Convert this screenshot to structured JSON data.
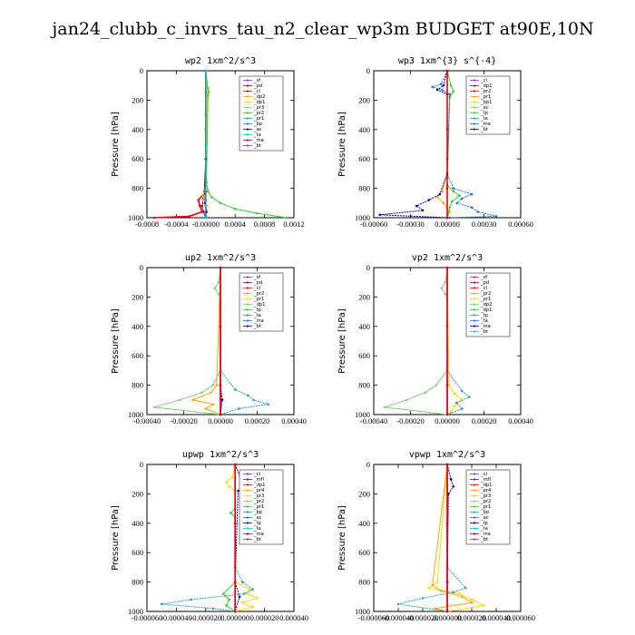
{
  "figure_title": "jan24_clubb_c_invrs_tau_n2_clear_wp3m  BUDGET at90E,10N",
  "colors": {
    "purple": "#8a2be2",
    "red": "#e8000b",
    "orange": "#ffa500",
    "yellow": "#ffd700",
    "green": "#32cd32",
    "blue": "#1e6ee8",
    "navy": "#00008b",
    "teal": "#2a9db5",
    "cyan": "#00ced1",
    "darkred": "#a00040",
    "ltgreen": "#7ccd7c"
  },
  "chart_data": [
    {
      "type": "line",
      "title": "wp2  1xm^2/s^3",
      "ylabel": "Pressure [hPa]",
      "xlim": [
        -0.0008,
        0.0012
      ],
      "ylim": [
        1000,
        0
      ],
      "xticks": [
        -0.0008,
        -0.0004,
        0.0,
        0.0004,
        0.0008,
        0.0012
      ],
      "xtick_labels": [
        "-0.0008",
        "-0.0004",
        "-0.00000",
        "0.0004",
        "0.0008",
        "0.0012"
      ],
      "yticks": [
        0,
        200,
        400,
        600,
        800,
        1000
      ],
      "legend": [
        "_sf",
        "_pd",
        "_cl",
        "_dp2",
        "_dp1",
        "_pr3",
        "_pr2",
        "_pr1",
        "_bp",
        "_ac",
        "_ta",
        "_ma",
        "_bt"
      ],
      "series": [
        {
          "name": "_pd",
          "color": "purple",
          "p": [
            0,
            150,
            400,
            700,
            820,
            880,
            920,
            960,
            990,
            1000
          ],
          "x": [
            0,
            0,
            0,
            0,
            0,
            0,
            0,
            0,
            0,
            0
          ]
        },
        {
          "name": "_cl",
          "color": "red",
          "p": [
            0,
            300,
            600,
            800,
            840,
            880,
            920,
            960,
            990,
            1000
          ],
          "x": [
            0,
            0,
            0,
            0,
            -3e-05,
            -0.0001,
            -8e-05,
            -5e-05,
            -0.00022,
            -0.0007
          ]
        },
        {
          "name": "_dp1",
          "color": "darkred",
          "p": [
            0,
            600,
            820,
            870,
            920,
            960,
            1000
          ],
          "x": [
            0,
            0,
            -2e-05,
            -3e-05,
            -5e-05,
            -3e-05,
            0
          ]
        },
        {
          "name": "_pr2",
          "color": "yellow",
          "p": [
            0,
            120,
            150,
            170,
            800,
            840,
            880,
            920,
            960,
            1000
          ],
          "x": [
            0,
            2e-05,
            3e-05,
            2e-05,
            0,
            -4e-05,
            -2e-05,
            2e-05,
            1e-05,
            0
          ]
        },
        {
          "name": "_ac",
          "color": "green",
          "p": [
            0,
            120,
            145,
            170,
            760,
            820,
            860,
            900,
            940,
            970,
            1000
          ],
          "x": [
            0,
            3e-05,
            4e-05,
            3e-05,
            1e-05,
            3e-05,
            8e-05,
            0.0002,
            0.0004,
            0.0007,
            0.0011
          ]
        },
        {
          "name": "_ta",
          "color": "navy",
          "p": [
            0,
            600,
            900,
            960,
            1000
          ],
          "x": [
            0,
            0,
            -1e-05,
            1e-05,
            0
          ]
        },
        {
          "name": "_bt",
          "color": "cyan",
          "p": [
            0,
            500,
            1000
          ],
          "x": [
            0,
            0,
            0
          ]
        }
      ]
    },
    {
      "type": "line",
      "title": "wp3  1xm^{3} s^{-4}",
      "ylabel": "Pressure [hPa]",
      "xlim": [
        -0.0006,
        0.0006
      ],
      "ylim": [
        1000,
        0
      ],
      "xticks": [
        -0.0006,
        -0.0003,
        0.0,
        0.0003,
        0.0006
      ],
      "xtick_labels": [
        "-0.00060",
        "-0.00030",
        "0.00000",
        "0.00030",
        "0.00060"
      ],
      "yticks": [
        0,
        200,
        400,
        600,
        800,
        1000
      ],
      "legend": [
        "_cl",
        "_dp1",
        "_pr2",
        "_pr1",
        "_bp1",
        "_ac",
        "_tp",
        "_ta",
        "_ma",
        "_bt"
      ],
      "series": [
        {
          "name": "_dp1",
          "color": "darkred",
          "p": [
            0,
            600,
            1000
          ],
          "x": [
            0,
            0,
            0
          ]
        },
        {
          "name": "_pr2",
          "color": "orange",
          "p": [
            0,
            700,
            820,
            860,
            900,
            960,
            1000
          ],
          "x": [
            0,
            0,
            -4e-05,
            -8e-05,
            -3e-05,
            2e-05,
            0
          ]
        },
        {
          "name": "_ac",
          "color": "green",
          "p": [
            0,
            100,
            140,
            180,
            780,
            820,
            850,
            890,
            930,
            1000
          ],
          "x": [
            0,
            3e-05,
            5e-05,
            2e-05,
            0,
            5e-05,
            0.0001,
            4e-05,
            2e-05,
            0
          ]
        },
        {
          "name": "_tp",
          "color": "blue",
          "p": [
            0,
            90,
            110,
            130,
            160,
            700,
            800,
            840,
            870,
            900,
            930,
            960,
            990,
            1000
          ],
          "x": [
            0,
            -5e-05,
            -0.00012,
            -4e-05,
            2e-05,
            0,
            5e-05,
            0.0002,
            0.00012,
            8e-05,
            0.0002,
            0.00025,
            0.0004,
            2e-05
          ]
        },
        {
          "name": "_ta",
          "color": "navy",
          "p": [
            0,
            100,
            130,
            160,
            700,
            840,
            880,
            920,
            950,
            980,
            1000
          ],
          "x": [
            0,
            -3e-05,
            -8e-05,
            0,
            0,
            -6e-05,
            -0.00015,
            -0.00025,
            -0.0002,
            -0.00055,
            0
          ]
        },
        {
          "name": "_cl",
          "color": "red",
          "p": [
            0,
            400,
            800,
            1000
          ],
          "x": [
            0,
            0,
            0,
            0
          ]
        }
      ]
    },
    {
      "type": "line",
      "title": "up2  1xm^2/s^3",
      "ylabel": "Pressure [hPa]",
      "xlim": [
        -0.0004,
        0.0004
      ],
      "ylim": [
        1000,
        0
      ],
      "xticks": [
        -0.0004,
        -0.0002,
        0.0,
        0.0002,
        0.0004
      ],
      "xtick_labels": [
        "-0.00040",
        "-0.00020",
        "0.00000",
        "0.00020",
        "0.00040"
      ],
      "yticks": [
        0,
        200,
        400,
        600,
        800,
        1000
      ],
      "legend": [
        "_sf",
        "_pd",
        "_cl",
        "_pr2",
        "_pr1",
        "_dp1",
        "_tp",
        "_ta",
        "_ma",
        "_bt"
      ],
      "series": [
        {
          "name": "_pd",
          "color": "purple",
          "p": [
            0,
            400,
            800,
            1000
          ],
          "x": [
            0,
            0,
            0,
            0
          ]
        },
        {
          "name": "_pr1",
          "color": "orange",
          "p": [
            0,
            800,
            850,
            900,
            930,
            960,
            1000
          ],
          "x": [
            0,
            -2e-05,
            -5e-05,
            -0.00015,
            -4e-05,
            -8e-05,
            0
          ]
        },
        {
          "name": "_dp1",
          "color": "ltgreen",
          "p": [
            0,
            100,
            140,
            180,
            220,
            700,
            800,
            850,
            900,
            950,
            1000
          ],
          "x": [
            0,
            -1e-05,
            -3e-05,
            -1e-05,
            0,
            0,
            -4e-05,
            -0.0001,
            -0.00022,
            -0.00036,
            0
          ]
        },
        {
          "name": "_tp",
          "color": "teal",
          "p": [
            0,
            700,
            830,
            870,
            900,
            930,
            960,
            1000
          ],
          "x": [
            0,
            0,
            8e-05,
            0.00015,
            0.00018,
            0.00026,
            0.0001,
            0
          ]
        },
        {
          "name": "_ta",
          "color": "navy",
          "p": [
            0,
            800,
            900,
            1000
          ],
          "x": [
            0,
            0,
            1e-05,
            0
          ]
        },
        {
          "name": "_cl",
          "color": "red",
          "p": [
            0,
            400,
            800,
            1000
          ],
          "x": [
            0,
            0,
            0,
            0
          ]
        }
      ]
    },
    {
      "type": "line",
      "title": "vp2  1xm^2/s^3",
      "ylabel": "Pressure [hPa]",
      "xlim": [
        -0.0004,
        0.0004
      ],
      "ylim": [
        1000,
        0
      ],
      "xticks": [
        -0.0004,
        -0.0002,
        0.0,
        0.0002,
        0.0004
      ],
      "xtick_labels": [
        "-0.00040",
        "-0.00020",
        "0.00000",
        "0.00020",
        "0.00040"
      ],
      "yticks": [
        0,
        200,
        400,
        600,
        800,
        1000
      ],
      "legend": [
        "_sf",
        "_pd",
        "_cl",
        "_pr2",
        "_pr1",
        "_dp2",
        "_dp1",
        "_tp",
        "_ta",
        "_ma",
        "_bt"
      ],
      "series": [
        {
          "name": "_pd",
          "color": "purple",
          "p": [
            0,
            400,
            800,
            1000
          ],
          "x": [
            0,
            0,
            0,
            0
          ]
        },
        {
          "name": "_pr1",
          "color": "yellow",
          "p": [
            0,
            800,
            860,
            900,
            940,
            980,
            1000
          ],
          "x": [
            0,
            1e-05,
            4e-05,
            8e-05,
            4e-05,
            2e-05,
            0
          ]
        },
        {
          "name": "_dp1",
          "color": "ltgreen",
          "p": [
            0,
            100,
            140,
            180,
            220,
            700,
            800,
            850,
            900,
            950,
            1000
          ],
          "x": [
            0,
            -1e-05,
            -3e-05,
            -1e-05,
            0,
            0,
            -6e-05,
            -0.00012,
            -0.00022,
            -0.00034,
            0
          ]
        },
        {
          "name": "_tp",
          "color": "teal",
          "p": [
            0,
            700,
            840,
            880,
            920,
            960,
            1000
          ],
          "x": [
            0,
            0,
            8e-05,
            0.00012,
            5e-05,
            8e-05,
            0
          ]
        },
        {
          "name": "_cl",
          "color": "red",
          "p": [
            0,
            400,
            800,
            1000
          ],
          "x": [
            0,
            0,
            0,
            0
          ]
        }
      ]
    },
    {
      "type": "line",
      "title": "upwp  1xm^2/s^3",
      "ylabel": "Pressure [hPa]",
      "xlim": [
        -6e-05,
        4e-05
      ],
      "ylim": [
        1000,
        0
      ],
      "xticks": [
        -6e-05,
        -4e-05,
        -2e-05,
        0.0,
        2e-05,
        4e-05
      ],
      "xtick_labels": [
        "-0.000060",
        "-0.000040",
        "-0.000020",
        "0.000000",
        "0.000020",
        "0.000040"
      ],
      "yticks": [
        0,
        200,
        400,
        600,
        800,
        1000
      ],
      "legend": [
        "_cl",
        "_mfl",
        "_dp1",
        "_pr4",
        "_pr3",
        "_pr2",
        "_pr1",
        "_bp",
        "_ac",
        "_tp",
        "_ta",
        "_ma",
        "_bt"
      ],
      "series": [
        {
          "name": "_mfl",
          "color": "purple",
          "p": [
            0,
            400,
            800,
            1000
          ],
          "x": [
            0,
            0,
            0,
            0
          ]
        },
        {
          "name": "_pr1",
          "color": "yellow",
          "p": [
            0,
            90,
            120,
            150,
            180,
            800,
            850,
            880,
            910,
            940,
            970,
            1000
          ],
          "x": [
            0,
            -2e-06,
            -6e-06,
            -4e-06,
            0,
            0,
            1e-05,
            8e-06,
            1.5e-05,
            5e-06,
            1.2e-05,
            0
          ]
        },
        {
          "name": "_ac",
          "color": "green",
          "p": [
            0,
            300,
            330,
            360,
            800,
            880,
            920,
            960,
            1000
          ],
          "x": [
            0,
            0,
            -3e-06,
            0,
            0,
            -8e-06,
            -4e-06,
            -6e-06,
            0
          ]
        },
        {
          "name": "_tp",
          "color": "teal",
          "p": [
            0,
            700,
            800,
            850,
            880,
            920,
            950,
            980,
            1000
          ],
          "x": [
            0,
            0,
            5e-06,
            1.2e-05,
            6e-06,
            -3e-05,
            -5e-05,
            -1.5e-05,
            0
          ]
        },
        {
          "name": "_ta",
          "color": "navy",
          "p": [
            0,
            100,
            140,
            180,
            800,
            900,
            1000
          ],
          "x": [
            0,
            4e-06,
            6e-06,
            2e-06,
            0,
            3e-06,
            0
          ]
        },
        {
          "name": "_cl",
          "color": "red",
          "p": [
            0,
            400,
            800,
            1000
          ],
          "x": [
            0,
            0,
            0,
            0
          ]
        }
      ]
    },
    {
      "type": "line",
      "title": "vpwp  1xm^2/s^3",
      "ylabel": "Pressure [hPa]",
      "xlim": [
        -6e-05,
        6e-05
      ],
      "ylim": [
        1000,
        0
      ],
      "xticks": [
        -6e-05,
        -4e-05,
        -2e-05,
        0.0,
        2e-05,
        4e-05,
        6e-05
      ],
      "xtick_labels": [
        "-0.000060",
        "-0.000040",
        "-0.000020",
        "0.000000",
        "0.000020",
        "0.000040",
        "0.000060"
      ],
      "yticks": [
        0,
        200,
        400,
        600,
        800,
        1000
      ],
      "legend": [
        "_cl",
        "_mfl",
        "_dp1",
        "_pr4",
        "_pr3",
        "_pr2",
        "_pr1",
        "_bp",
        "_ac",
        "_tp",
        "_ta",
        "_ma",
        "_bt"
      ],
      "series": [
        {
          "name": "_mfl",
          "color": "purple",
          "p": [
            0,
            400,
            800,
            1000
          ],
          "x": [
            0,
            0,
            0,
            0
          ]
        },
        {
          "name": "_pr1",
          "color": "yellow",
          "p": [
            0,
            800,
            840,
            880,
            920,
            960,
            1000
          ],
          "x": [
            0,
            -8e-06,
            -1.5e-05,
            1e-05,
            2e-05,
            3e-05,
            0
          ]
        },
        {
          "name": "_pr2",
          "color": "orange",
          "p": [
            0,
            820,
            860,
            900,
            940,
            980,
            1000
          ],
          "x": [
            0,
            -1.2e-05,
            -5e-06,
            1.2e-05,
            2e-05,
            -1e-05,
            0
          ]
        },
        {
          "name": "_tp",
          "color": "teal",
          "p": [
            0,
            700,
            840,
            870,
            910,
            950,
            1000
          ],
          "x": [
            0,
            0,
            1.5e-05,
            5e-06,
            -2e-05,
            -4e-05,
            0
          ]
        },
        {
          "name": "_ta",
          "color": "navy",
          "p": [
            0,
            100,
            150,
            200,
            800,
            1000
          ],
          "x": [
            0,
            3e-06,
            5e-06,
            1e-06,
            0,
            0
          ]
        },
        {
          "name": "_cl",
          "color": "red",
          "p": [
            0,
            400,
            800,
            1000
          ],
          "x": [
            0,
            0,
            0,
            0
          ]
        }
      ]
    }
  ]
}
